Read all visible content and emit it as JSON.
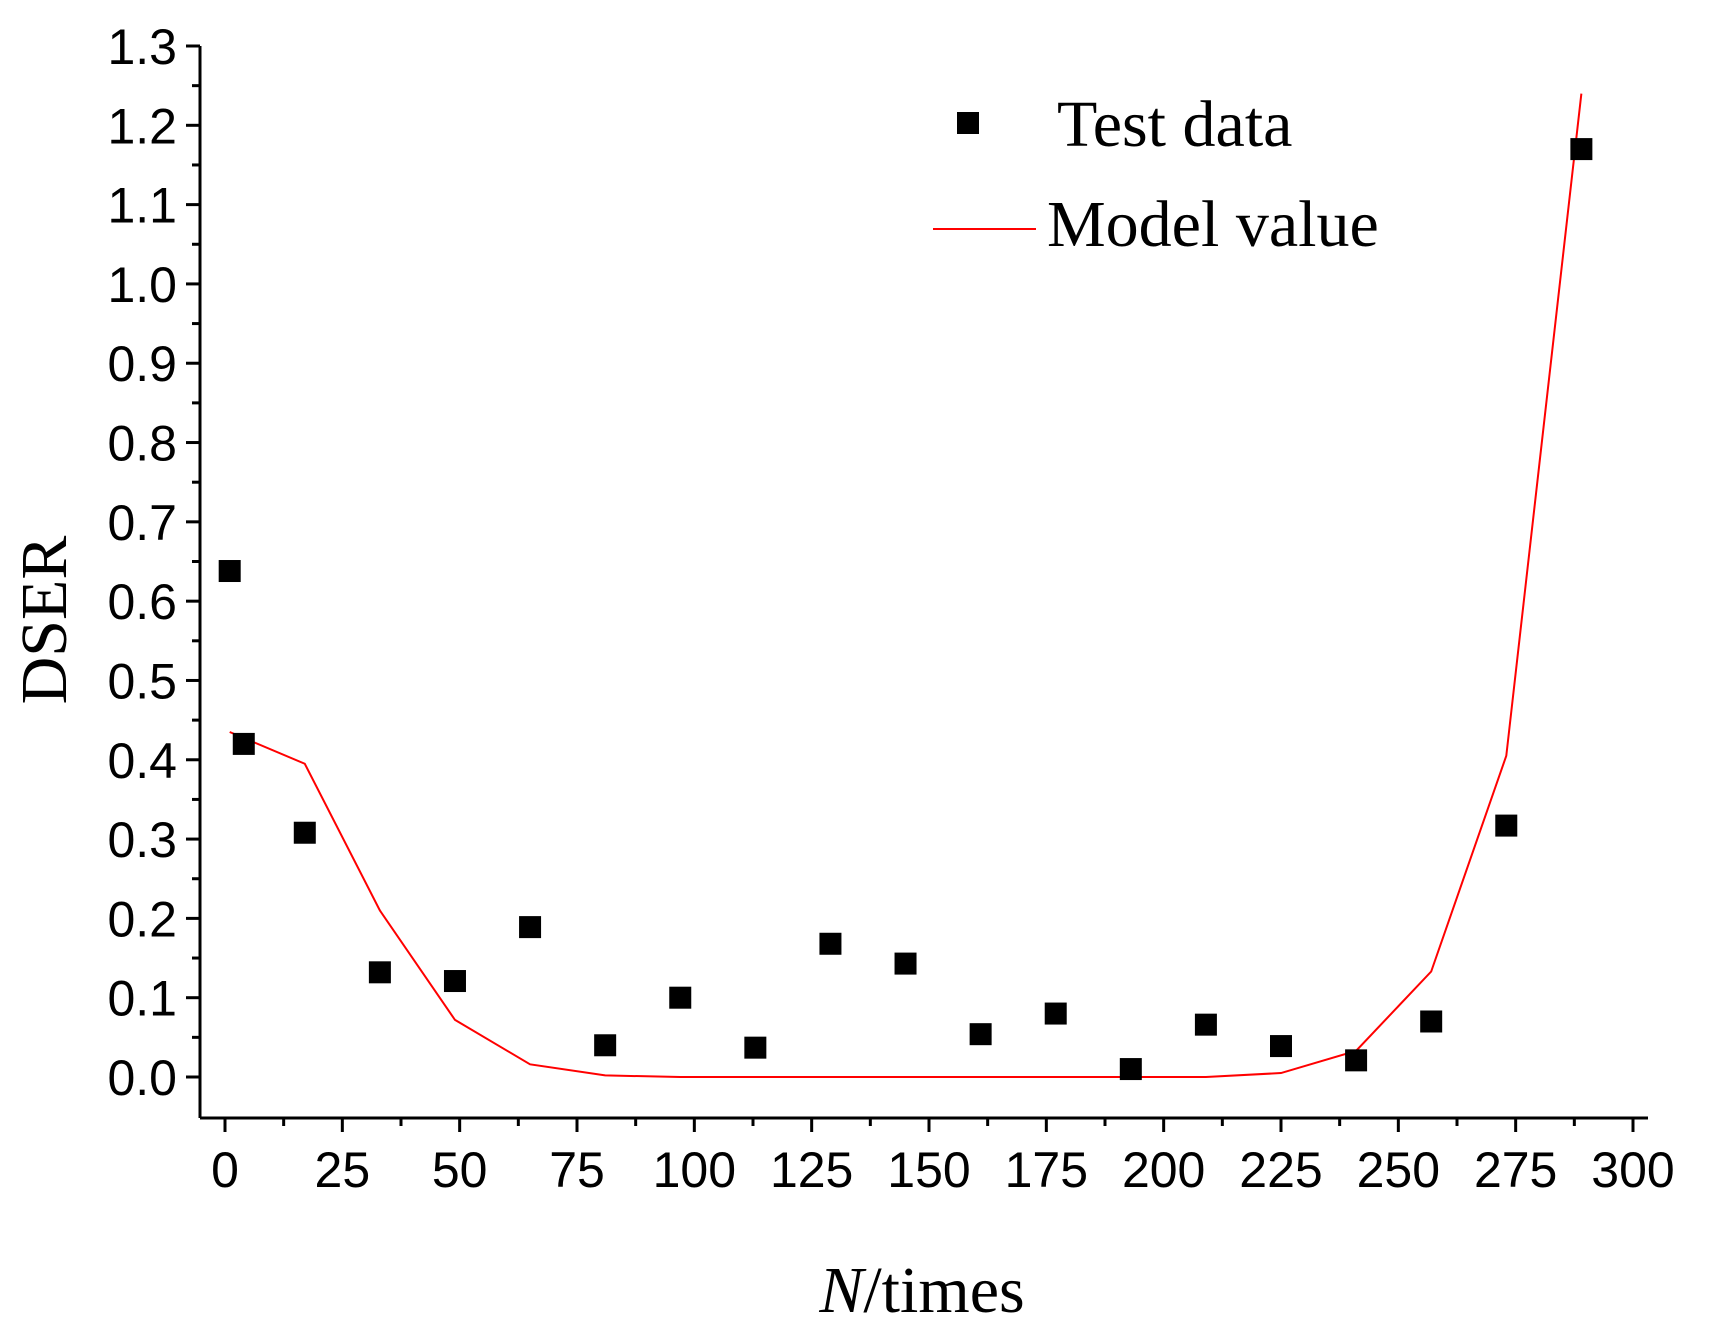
{
  "chart_data": {
    "type": "scatter",
    "title": "",
    "xlabel_italic": "N",
    "xlabel_rest": "/times",
    "ylabel": "DSER",
    "xlim": [
      -5,
      300
    ],
    "ylim": [
      -0.05,
      1.3
    ],
    "x_ticks": [
      "0",
      "25",
      "50",
      "75",
      "100",
      "125",
      "150",
      "175",
      "200",
      "225",
      "250",
      "275",
      "300"
    ],
    "y_ticks": [
      "0.0",
      "0.1",
      "0.2",
      "0.3",
      "0.4",
      "0.5",
      "0.6",
      "0.7",
      "0.8",
      "0.9",
      "1.0",
      "1.1",
      "1.2",
      "1.3"
    ],
    "legend_position": "top-right",
    "series": [
      {
        "name": "Test data",
        "kind": "scatter",
        "color": "#000000",
        "marker": "square",
        "x": [
          1,
          4,
          17,
          33,
          49,
          65,
          81,
          97,
          113,
          129,
          145,
          161,
          177,
          193,
          209,
          225,
          241,
          257,
          273,
          289
        ],
        "y": [
          0.638,
          0.42,
          0.308,
          0.132,
          0.121,
          0.189,
          0.04,
          0.1,
          0.037,
          0.168,
          0.143,
          0.054,
          0.08,
          0.01,
          0.066,
          0.039,
          0.021,
          0.07,
          0.317,
          1.17
        ]
      },
      {
        "name": "Model value",
        "kind": "line",
        "color": "#ff0000",
        "x": [
          1,
          17,
          33,
          49,
          65,
          81,
          97,
          113,
          129,
          145,
          161,
          177,
          193,
          209,
          225,
          241,
          257,
          273,
          289
        ],
        "y": [
          0.435,
          0.395,
          0.21,
          0.072,
          0.016,
          0.002,
          0.0,
          0.0,
          0.0,
          0.0,
          0.0,
          0.0,
          0.0,
          0.0,
          0.005,
          0.033,
          0.133,
          0.405,
          1.24
        ]
      }
    ]
  }
}
